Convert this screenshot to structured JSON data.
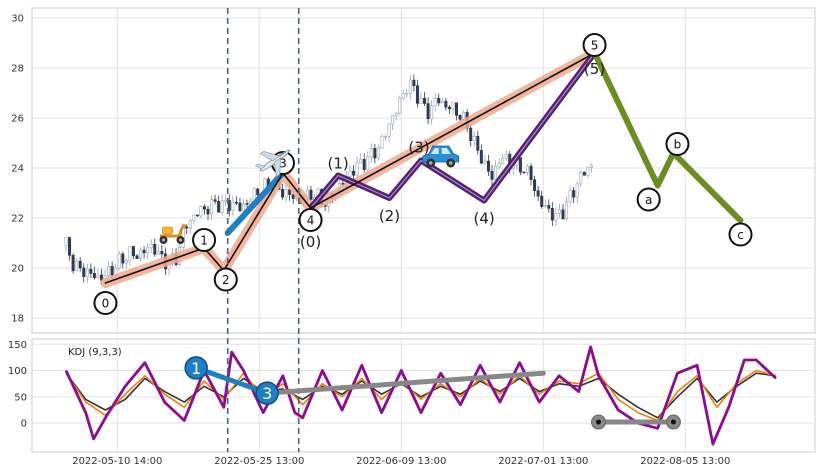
{
  "chart_data": [
    {
      "type": "candlestick",
      "panel": "price",
      "ylim": [
        17.4,
        30.4
      ],
      "yticks": [
        "18",
        "20",
        "22",
        "24",
        "26",
        "28",
        "30"
      ],
      "grid": true,
      "price_path": [
        [
          0,
          20.9
        ],
        [
          2,
          20.1
        ],
        [
          4,
          19.9
        ],
        [
          6,
          19.8
        ],
        [
          8,
          19.6
        ],
        [
          10,
          19.7
        ],
        [
          12,
          20.0
        ],
        [
          14,
          20.3
        ],
        [
          16,
          20.6
        ],
        [
          18,
          20.5
        ],
        [
          20,
          20.7
        ],
        [
          22,
          20.9
        ],
        [
          24,
          20.4
        ],
        [
          26,
          20.2
        ],
        [
          28,
          20.4
        ],
        [
          30,
          21.6
        ],
        [
          32,
          22.0
        ],
        [
          34,
          22.3
        ],
        [
          36,
          22.4
        ],
        [
          38,
          22.6
        ],
        [
          40,
          22.5
        ],
        [
          42,
          22.6
        ],
        [
          44,
          22.4
        ],
        [
          46,
          22.6
        ],
        [
          48,
          23.0
        ],
        [
          50,
          23.2
        ],
        [
          52,
          23.4
        ],
        [
          54,
          23.1
        ],
        [
          56,
          23.0
        ],
        [
          58,
          22.8
        ],
        [
          60,
          22.7
        ],
        [
          62,
          23.0
        ],
        [
          64,
          22.8
        ],
        [
          66,
          22.6
        ],
        [
          68,
          23.0
        ],
        [
          70,
          23.4
        ],
        [
          72,
          23.8
        ],
        [
          74,
          24.1
        ],
        [
          76,
          24.3
        ],
        [
          78,
          24.6
        ],
        [
          80,
          25.0
        ],
        [
          82,
          25.8
        ],
        [
          84,
          26.4
        ],
        [
          86,
          27.2
        ],
        [
          88,
          27.3
        ],
        [
          90,
          26.6
        ],
        [
          92,
          26.2
        ],
        [
          94,
          26.8
        ],
        [
          96,
          26.5
        ],
        [
          98,
          26.4
        ],
        [
          100,
          26.1
        ],
        [
          102,
          25.6
        ],
        [
          104,
          24.8
        ],
        [
          106,
          24.2
        ],
        [
          108,
          23.6
        ],
        [
          110,
          24.4
        ],
        [
          112,
          24.3
        ],
        [
          114,
          24.1
        ],
        [
          116,
          24.0
        ],
        [
          118,
          23.6
        ],
        [
          120,
          22.6
        ],
        [
          122,
          22.4
        ],
        [
          124,
          22.0
        ],
        [
          126,
          22.3
        ],
        [
          128,
          22.9
        ],
        [
          130,
          23.5
        ],
        [
          132,
          24.0
        ],
        [
          134,
          24.1
        ]
      ],
      "point_labels": [
        {
          "label": "0",
          "t": 10,
          "v": 19.4,
          "circled": true
        },
        {
          "label": "1",
          "t": 35,
          "v": 20.8,
          "circled": true
        },
        {
          "label": "2",
          "t": 40,
          "v": 19.9,
          "circled": true
        },
        {
          "label": "3",
          "t": 55,
          "v": 23.8,
          "circled": true
        },
        {
          "label": "4",
          "t": 62,
          "v": 22.4,
          "circled": true
        },
        {
          "label": "5",
          "t": 134,
          "v": 28.6,
          "circled": true
        },
        {
          "label": "a",
          "t": 150,
          "v": 23.3,
          "circled": true
        },
        {
          "label": "b",
          "t": 154,
          "v": 24.6,
          "circled": true
        },
        {
          "label": "c",
          "t": 171,
          "v": 21.9,
          "circled": true
        },
        {
          "label": "(0)",
          "t": 62,
          "v": 22.4,
          "circled": false
        },
        {
          "label": "(1)",
          "t": 69,
          "v": 23.7,
          "circled": false
        },
        {
          "label": "(2)",
          "t": 82,
          "v": 22.8,
          "circled": false
        },
        {
          "label": "(3)",
          "t": 90,
          "v": 24.3,
          "circled": false
        },
        {
          "label": "(4)",
          "t": 106,
          "v": 22.7,
          "circled": false
        },
        {
          "label": "(5)",
          "t": 134,
          "v": 28.6,
          "circled": false
        }
      ],
      "lines": [
        {
          "name": "impulse",
          "color": "#111111",
          "points": [
            [
              10,
              19.4
            ],
            [
              35,
              20.8
            ],
            [
              40,
              19.9
            ],
            [
              55,
              23.8
            ],
            [
              62,
              22.4
            ],
            [
              134,
              28.6
            ]
          ]
        },
        {
          "name": "channel",
          "color": "#f2a88c",
          "points": [
            [
              10,
              19.4
            ],
            [
              35,
              20.8
            ],
            [
              40,
              19.9
            ],
            [
              55,
              23.8
            ],
            [
              62,
              22.4
            ],
            [
              134,
              28.6
            ]
          ]
        },
        {
          "name": "sub-waves",
          "color": "#4b1470",
          "points": [
            [
              62,
              22.4
            ],
            [
              69,
              23.7
            ],
            [
              82,
              22.8
            ],
            [
              90,
              24.3
            ],
            [
              106,
              22.7
            ],
            [
              134,
              28.6
            ]
          ]
        },
        {
          "name": "correction",
          "color": "#6b8e23",
          "points": [
            [
              134,
              28.6
            ],
            [
              150,
              23.3
            ],
            [
              154,
              24.6
            ],
            [
              171,
              21.9
            ]
          ]
        },
        {
          "name": "wave-3-highlight",
          "color": "#1f7fc4",
          "points": [
            [
              41,
              21.4
            ],
            [
              55,
              23.8
            ]
          ]
        }
      ],
      "markers": [
        {
          "icon": "scooter-icon",
          "t": 27,
          "v": 21.4
        },
        {
          "icon": "airplane-icon",
          "t": 53,
          "v": 24.3
        },
        {
          "icon": "car-icon",
          "t": 95,
          "v": 24.4
        }
      ],
      "vlines": [
        41,
        59
      ]
    },
    {
      "type": "line",
      "panel": "indicator",
      "title": "KDJ (9,3,3)",
      "ylim": [
        -55,
        160
      ],
      "yticks": [
        "0",
        "50",
        "100",
        "150"
      ],
      "categories": [
        "2022-05-10 14:00",
        "2022-05-25 13:00",
        "2022-06-09 13:00",
        "2022-07-01 13:00",
        "2022-08-05 13:00"
      ],
      "category_t": [
        13,
        49,
        85,
        121,
        157
      ],
      "series": [
        {
          "color": "#333333",
          "points": [
            [
              0,
              95
            ],
            [
              5,
              45
            ],
            [
              10,
              25
            ],
            [
              15,
              45
            ],
            [
              20,
              85
            ],
            [
              25,
              60
            ],
            [
              30,
              40
            ],
            [
              35,
              70
            ],
            [
              40,
              50
            ],
            [
              45,
              85
            ],
            [
              50,
              60
            ],
            [
              55,
              65
            ],
            [
              60,
              45
            ],
            [
              65,
              70
            ],
            [
              70,
              55
            ],
            [
              75,
              80
            ],
            [
              80,
              55
            ],
            [
              85,
              75
            ],
            [
              90,
              50
            ],
            [
              95,
              70
            ],
            [
              100,
              55
            ],
            [
              105,
              80
            ],
            [
              110,
              60
            ],
            [
              115,
              85
            ],
            [
              120,
              60
            ],
            [
              125,
              75
            ],
            [
              130,
              70
            ],
            [
              135,
              85
            ],
            [
              140,
              55
            ],
            [
              145,
              30
            ],
            [
              150,
              10
            ],
            [
              155,
              50
            ],
            [
              160,
              85
            ],
            [
              165,
              40
            ],
            [
              170,
              70
            ],
            [
              175,
              95
            ],
            [
              180,
              90
            ]
          ]
        },
        {
          "color": "#f07f0d",
          "points": [
            [
              0,
              95
            ],
            [
              5,
              40
            ],
            [
              10,
              15
            ],
            [
              15,
              55
            ],
            [
              20,
              90
            ],
            [
              25,
              55
            ],
            [
              30,
              30
            ],
            [
              35,
              80
            ],
            [
              40,
              45
            ],
            [
              45,
              95
            ],
            [
              50,
              50
            ],
            [
              55,
              75
            ],
            [
              60,
              35
            ],
            [
              65,
              75
            ],
            [
              70,
              50
            ],
            [
              75,
              85
            ],
            [
              80,
              45
            ],
            [
              85,
              80
            ],
            [
              90,
              45
            ],
            [
              95,
              75
            ],
            [
              100,
              50
            ],
            [
              105,
              85
            ],
            [
              110,
              55
            ],
            [
              115,
              90
            ],
            [
              120,
              55
            ],
            [
              125,
              80
            ],
            [
              130,
              75
            ],
            [
              135,
              95
            ],
            [
              140,
              45
            ],
            [
              145,
              20
            ],
            [
              150,
              5
            ],
            [
              155,
              60
            ],
            [
              160,
              90
            ],
            [
              165,
              30
            ],
            [
              170,
              75
            ],
            [
              175,
              100
            ],
            [
              180,
              90
            ]
          ]
        },
        {
          "color": "#8b0c8f",
          "points": [
            [
              0,
              100
            ],
            [
              5,
              20
            ],
            [
              7,
              -30
            ],
            [
              10,
              10
            ],
            [
              15,
              70
            ],
            [
              20,
              115
            ],
            [
              25,
              40
            ],
            [
              30,
              5
            ],
            [
              35,
              100
            ],
            [
              40,
              30
            ],
            [
              42,
              135
            ],
            [
              45,
              100
            ],
            [
              50,
              20
            ],
            [
              55,
              90
            ],
            [
              58,
              20
            ],
            [
              60,
              10
            ],
            [
              65,
              100
            ],
            [
              70,
              25
            ],
            [
              75,
              110
            ],
            [
              80,
              20
            ],
            [
              85,
              100
            ],
            [
              90,
              20
            ],
            [
              95,
              95
            ],
            [
              100,
              35
            ],
            [
              105,
              110
            ],
            [
              110,
              40
            ],
            [
              115,
              115
            ],
            [
              120,
              40
            ],
            [
              125,
              90
            ],
            [
              130,
              60
            ],
            [
              133,
              145
            ],
            [
              135,
              90
            ],
            [
              140,
              25
            ],
            [
              145,
              0
            ],
            [
              150,
              -10
            ],
            [
              155,
              95
            ],
            [
              160,
              110
            ],
            [
              164,
              -40
            ],
            [
              168,
              30
            ],
            [
              172,
              120
            ],
            [
              175,
              120
            ],
            [
              180,
              85
            ]
          ]
        }
      ],
      "overlay_lines": [
        {
          "color": "#1f7fc4",
          "points": [
            [
              33,
              105
            ],
            [
              51,
              57
            ]
          ]
        },
        {
          "color": "#888888",
          "points": [
            [
              51,
              57
            ],
            [
              121,
              95
            ]
          ]
        },
        {
          "color": "#888888",
          "points": [
            [
              135,
              2
            ],
            [
              154,
              2
            ]
          ]
        }
      ],
      "point_labels": [
        {
          "label": "1",
          "t": 33,
          "v": 105,
          "color": "#1f7fc4"
        },
        {
          "label": "3",
          "t": 51,
          "v": 57,
          "color": "#1f7fc4"
        },
        {
          "label": "",
          "t": 135,
          "v": 2,
          "color": "#888888"
        },
        {
          "label": "",
          "t": 154,
          "v": 2,
          "color": "#888888"
        }
      ],
      "vlines": [
        41,
        59
      ]
    }
  ]
}
